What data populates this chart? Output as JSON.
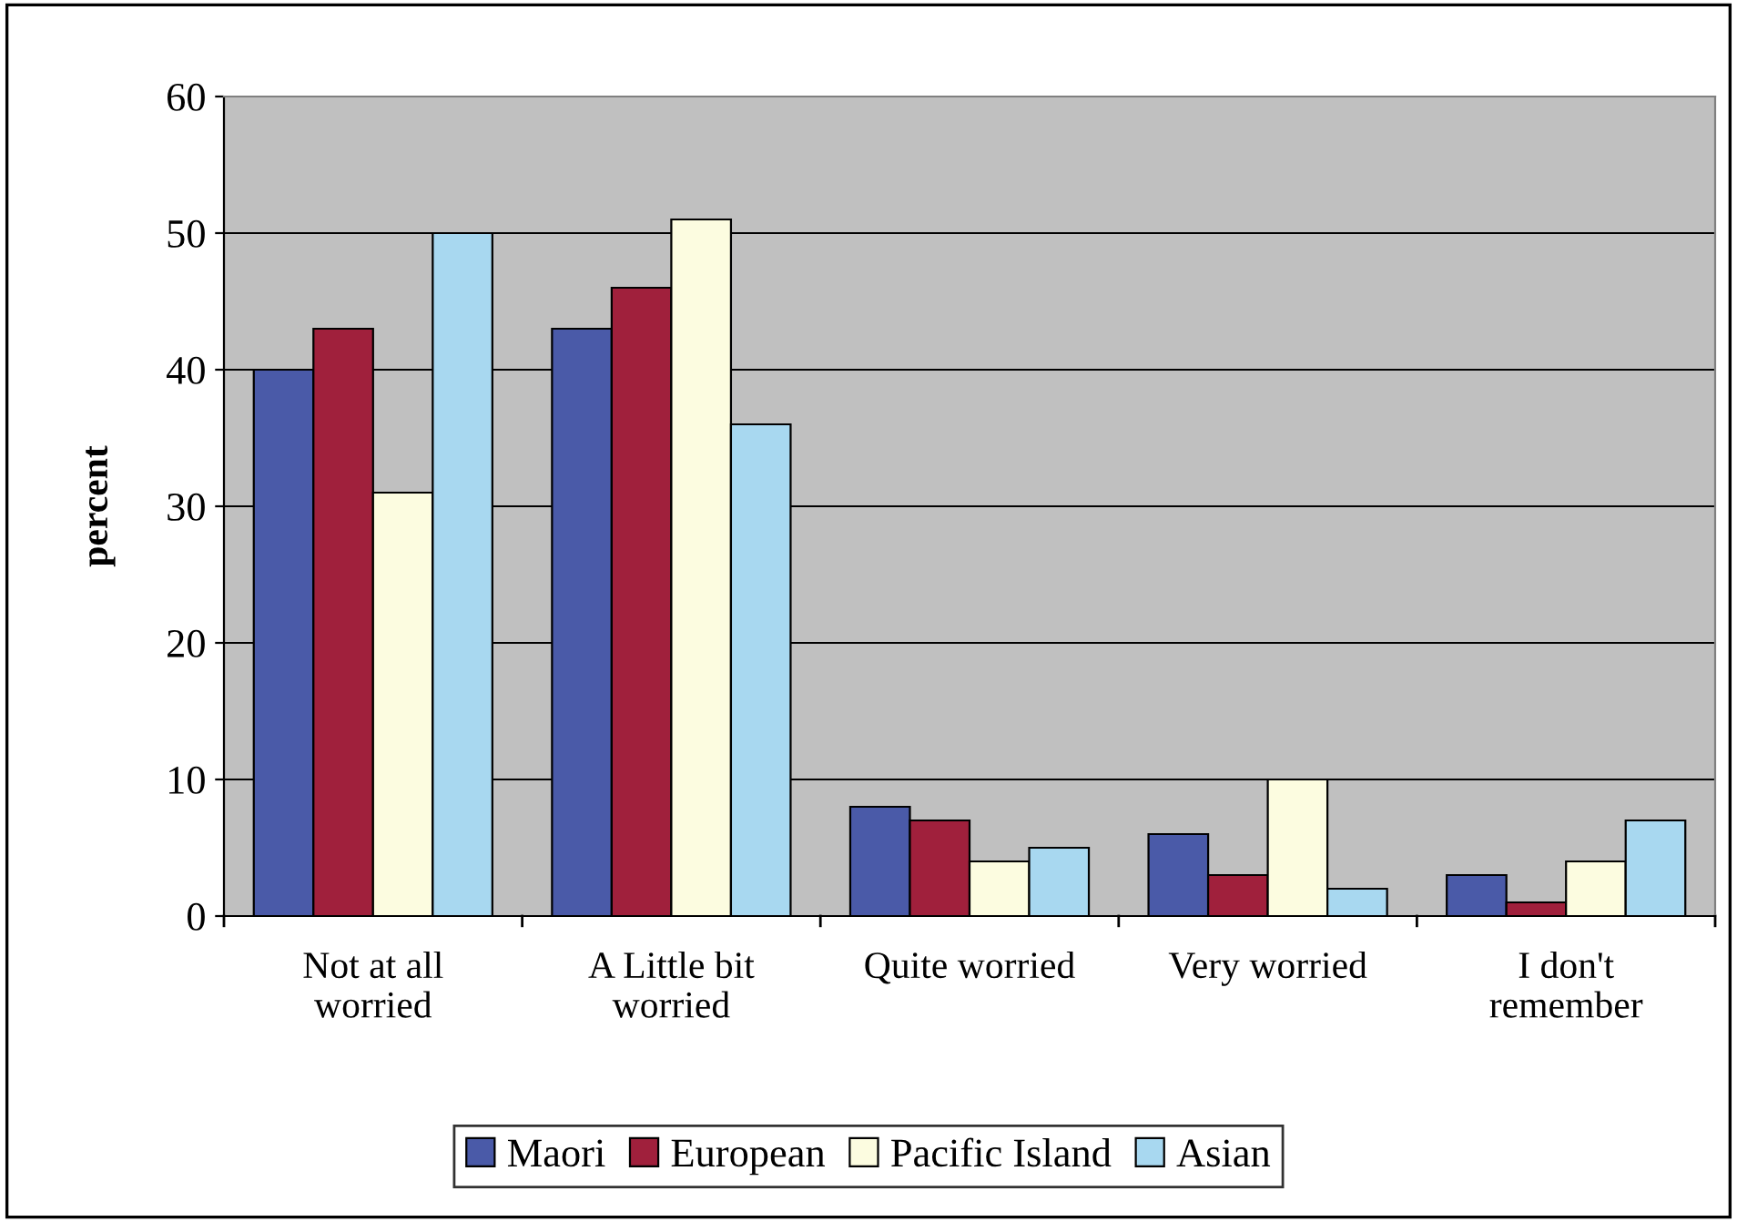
{
  "chart_data": {
    "type": "bar",
    "ylabel": "percent",
    "categories": [
      "Not at all\nworried",
      "A Little bit\nworried",
      "Quite worried",
      "Very worried",
      "I don't\nremember"
    ],
    "series": [
      {
        "name": "Maori",
        "color": "#4a5aa8",
        "values": [
          40,
          43,
          8,
          6,
          3
        ]
      },
      {
        "name": "European",
        "color": "#a0203c",
        "values": [
          43,
          46,
          7,
          3,
          1
        ]
      },
      {
        "name": "Pacific Island",
        "color": "#fcfce0",
        "values": [
          31,
          51,
          4,
          10,
          4
        ]
      },
      {
        "name": "Asian",
        "color": "#a8d8f0",
        "values": [
          50,
          36,
          5,
          2,
          7
        ]
      }
    ],
    "ylim": [
      0,
      60
    ],
    "yticks": [
      0,
      10,
      20,
      30,
      40,
      50,
      60
    ],
    "grid": "y",
    "legend": "bottom"
  }
}
